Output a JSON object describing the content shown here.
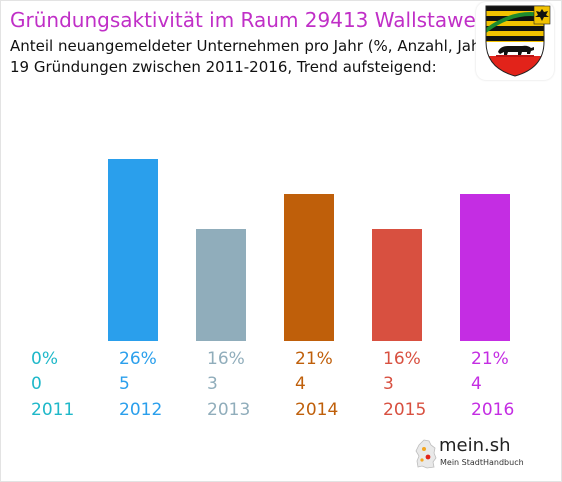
{
  "header": {
    "title": "Gründungsaktivität im Raum 29413 Wallstawe",
    "subtitle_1": "Anteil neuangemeldeter Unternehmen pro Jahr (%, Anzahl, Jahr)",
    "subtitle_2": "19 Gründungen zwischen 2011-2016, Trend aufsteigend:"
  },
  "crest": {
    "icon": "saxony-anhalt-coat-of-arms-icon"
  },
  "brand": {
    "name": "mein.sh",
    "tagline": "Mein StadtHandbuch",
    "icon": "germany-map-icon"
  },
  "chart_data": {
    "type": "bar",
    "categories": [
      "2011",
      "2012",
      "2013",
      "2014",
      "2015",
      "2016"
    ],
    "series": [
      {
        "values": [
          0,
          26,
          16,
          21,
          16,
          21
        ],
        "counts": [
          0,
          5,
          3,
          4,
          3,
          4
        ],
        "percent_labels": [
          "0%",
          "26%",
          "16%",
          "21%",
          "16%",
          "21%"
        ],
        "count_labels": [
          "0",
          "5",
          "3",
          "4",
          "3",
          "4"
        ],
        "colors": [
          "#1fb8c9",
          "#2a9fec",
          "#90adbb",
          "#bf5f0a",
          "#d85040",
          "#c42de3"
        ]
      }
    ],
    "title": "Gründungsaktivität im Raum 29413 Wallstawe",
    "xlabel": "",
    "ylabel": "",
    "ylim": [
      0,
      26
    ],
    "grid": false,
    "legend": "none"
  }
}
